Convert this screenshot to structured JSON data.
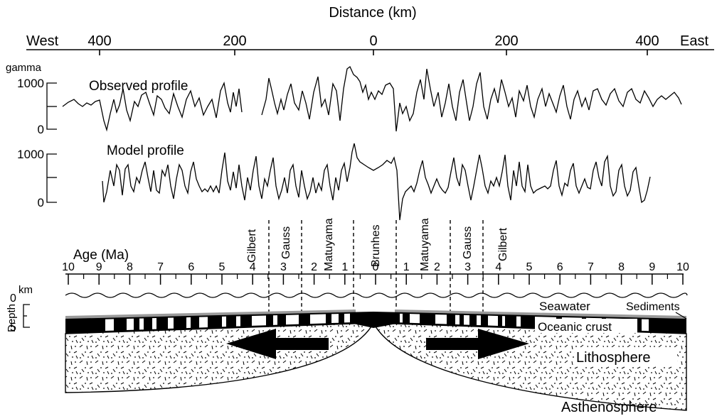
{
  "distance_axis": {
    "title": "Distance (km)",
    "west": "West",
    "east": "East",
    "ticks": [
      "400",
      "200",
      "0",
      "200",
      "400"
    ]
  },
  "profiles": {
    "unit": "gamma",
    "observed": {
      "label": "Observed profile",
      "y_ticks": [
        "1000",
        "0"
      ]
    },
    "model": {
      "label": "Model profile",
      "y_ticks": [
        "1000",
        "0"
      ]
    }
  },
  "chrons": {
    "left": [
      "Gilbert",
      "Gauss",
      "Matuyama"
    ],
    "center": "Brunhes",
    "right": [
      "Matuyama",
      "Gauss",
      "Gilbert"
    ]
  },
  "age_axis": {
    "title": "Age (Ma)",
    "ticks": [
      "10",
      "9",
      "8",
      "7",
      "6",
      "5",
      "4",
      "3",
      "2",
      "1",
      "0",
      "1",
      "2",
      "3",
      "4",
      "5",
      "6",
      "7",
      "8",
      "9",
      "10"
    ]
  },
  "depth_axis": {
    "title": "Depth",
    "unit": "km",
    "ticks": [
      "0",
      "5"
    ]
  },
  "layers": {
    "seawater": "Seawater",
    "sediments": "Sediments",
    "oceanic_crust": "Oceanic crust",
    "lithosphere": "Lithosphere",
    "asthenosphere": "Asthenosphere"
  },
  "colors": {
    "ink": "#000000",
    "sediment_gray": "#9a9a9a",
    "background": "#ffffff"
  }
}
